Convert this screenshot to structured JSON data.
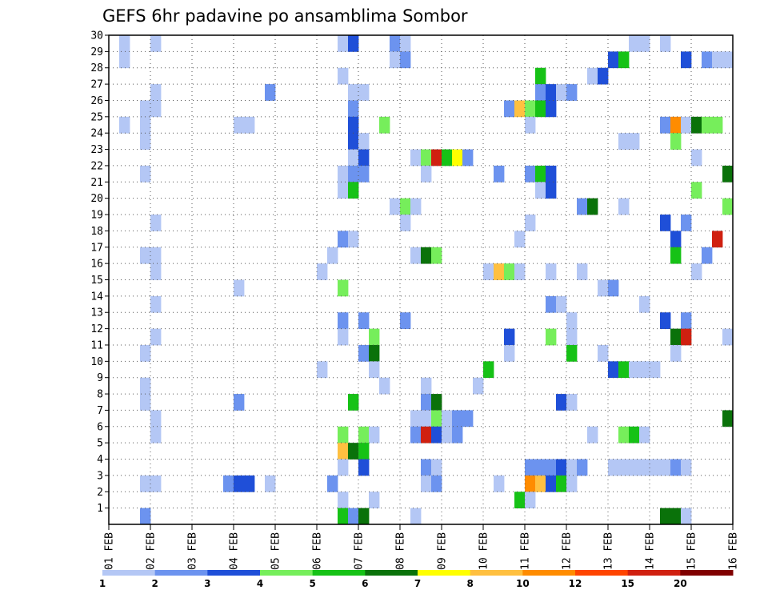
{
  "chart_data": {
    "type": "heatmap",
    "title": "GEFS 6hr padavine po ansamblima Sombor",
    "y_ticks": [
      "1",
      "2",
      "3",
      "4",
      "5",
      "6",
      "7",
      "8",
      "9",
      "10",
      "11",
      "12",
      "13",
      "14",
      "15",
      "16",
      "17",
      "18",
      "19",
      "20",
      "21",
      "22",
      "23",
      "24",
      "25",
      "26",
      "27",
      "28",
      "29",
      "30"
    ],
    "x_ticks": [
      "01 FEB",
      "02 FEB",
      "03 FEB",
      "04 FEB",
      "05 FEB",
      "06 FEB",
      "07 FEB",
      "08 FEB",
      "09 FEB",
      "10 FEB",
      "11 FEB",
      "12 FEB",
      "13 FEB",
      "14 FEB",
      "15 FEB",
      "16 FEB"
    ],
    "x_range_days": [
      0,
      15
    ],
    "y_range_members": [
      0,
      30
    ],
    "steps_per_day": 4,
    "legend": {
      "labels": [
        "1",
        "2",
        "3",
        "4",
        "5",
        "6",
        "7",
        "8",
        "10",
        "12",
        "15",
        "20"
      ],
      "colors": [
        "#b4c7f5",
        "#6c93ef",
        "#1f4fd8",
        "#76ee5b",
        "#16c216",
        "#0a720a",
        "#ffff00",
        "#ffc040",
        "#ff8c00",
        "#ff4500",
        "#d02010",
        "#800000"
      ]
    },
    "cells": [
      [
        1,
        30,
        1
      ],
      [
        4,
        30,
        1
      ],
      [
        22,
        30,
        1
      ],
      [
        23,
        30,
        3
      ],
      [
        27,
        30,
        2
      ],
      [
        28,
        30,
        1
      ],
      [
        50,
        30,
        1
      ],
      [
        51,
        30,
        1
      ],
      [
        53,
        30,
        1
      ],
      [
        1,
        29,
        1
      ],
      [
        27,
        29,
        1
      ],
      [
        28,
        29,
        2
      ],
      [
        48,
        29,
        3
      ],
      [
        49,
        29,
        5
      ],
      [
        55,
        29,
        3
      ],
      [
        57,
        29,
        2
      ],
      [
        58,
        29,
        1
      ],
      [
        59,
        29,
        1
      ],
      [
        22,
        28,
        1
      ],
      [
        41,
        28,
        5
      ],
      [
        46,
        28,
        1
      ],
      [
        47,
        28,
        3
      ],
      [
        4,
        27,
        1
      ],
      [
        15,
        27,
        2
      ],
      [
        23,
        27,
        1
      ],
      [
        24,
        27,
        1
      ],
      [
        41,
        27,
        2
      ],
      [
        42,
        27,
        3
      ],
      [
        43,
        27,
        1
      ],
      [
        44,
        27,
        2
      ],
      [
        3,
        26,
        1
      ],
      [
        4,
        26,
        1
      ],
      [
        23,
        26,
        2
      ],
      [
        38,
        26,
        2
      ],
      [
        39,
        26,
        8
      ],
      [
        40,
        26,
        4
      ],
      [
        41,
        26,
        5
      ],
      [
        42,
        26,
        3
      ],
      [
        1,
        25,
        1
      ],
      [
        3,
        25,
        1
      ],
      [
        12,
        25,
        1
      ],
      [
        13,
        25,
        1
      ],
      [
        23,
        25,
        3
      ],
      [
        26,
        25,
        4
      ],
      [
        40,
        25,
        1
      ],
      [
        53,
        25,
        2
      ],
      [
        54,
        25,
        9
      ],
      [
        55,
        25,
        1
      ],
      [
        56,
        25,
        6
      ],
      [
        57,
        25,
        4
      ],
      [
        58,
        25,
        4
      ],
      [
        3,
        24,
        1
      ],
      [
        23,
        24,
        3
      ],
      [
        24,
        24,
        1
      ],
      [
        49,
        24,
        1
      ],
      [
        50,
        24,
        1
      ],
      [
        54,
        24,
        4
      ],
      [
        23,
        23,
        1
      ],
      [
        24,
        23,
        3
      ],
      [
        29,
        23,
        1
      ],
      [
        30,
        23,
        4
      ],
      [
        31,
        23,
        11
      ],
      [
        32,
        23,
        5
      ],
      [
        33,
        23,
        7
      ],
      [
        34,
        23,
        2
      ],
      [
        56,
        23,
        1
      ],
      [
        3,
        22,
        1
      ],
      [
        22,
        22,
        1
      ],
      [
        23,
        22,
        2
      ],
      [
        24,
        22,
        2
      ],
      [
        30,
        22,
        1
      ],
      [
        37,
        22,
        2
      ],
      [
        40,
        22,
        2
      ],
      [
        41,
        22,
        5
      ],
      [
        42,
        22,
        3
      ],
      [
        59,
        22,
        6
      ],
      [
        22,
        21,
        1
      ],
      [
        23,
        21,
        5
      ],
      [
        41,
        21,
        1
      ],
      [
        42,
        21,
        3
      ],
      [
        56,
        21,
        4
      ],
      [
        27,
        20,
        1
      ],
      [
        28,
        20,
        4
      ],
      [
        29,
        20,
        1
      ],
      [
        45,
        20,
        2
      ],
      [
        46,
        20,
        6
      ],
      [
        49,
        20,
        1
      ],
      [
        59,
        20,
        4
      ],
      [
        4,
        19,
        1
      ],
      [
        28,
        19,
        1
      ],
      [
        40,
        19,
        1
      ],
      [
        53,
        19,
        3
      ],
      [
        55,
        19,
        2
      ],
      [
        22,
        18,
        2
      ],
      [
        23,
        18,
        1
      ],
      [
        39,
        18,
        1
      ],
      [
        54,
        18,
        3
      ],
      [
        58,
        18,
        11
      ],
      [
        3,
        17,
        1
      ],
      [
        4,
        17,
        1
      ],
      [
        21,
        17,
        1
      ],
      [
        29,
        17,
        1
      ],
      [
        30,
        17,
        6
      ],
      [
        31,
        17,
        4
      ],
      [
        54,
        17,
        5
      ],
      [
        57,
        17,
        2
      ],
      [
        4,
        16,
        1
      ],
      [
        20,
        16,
        1
      ],
      [
        36,
        16,
        1
      ],
      [
        37,
        16,
        8
      ],
      [
        38,
        16,
        4
      ],
      [
        39,
        16,
        1
      ],
      [
        42,
        16,
        1
      ],
      [
        45,
        16,
        1
      ],
      [
        56,
        16,
        1
      ],
      [
        12,
        15,
        1
      ],
      [
        22,
        15,
        4
      ],
      [
        47,
        15,
        1
      ],
      [
        48,
        15,
        2
      ],
      [
        4,
        14,
        1
      ],
      [
        42,
        14,
        2
      ],
      [
        43,
        14,
        1
      ],
      [
        51,
        14,
        1
      ],
      [
        22,
        13,
        2
      ],
      [
        24,
        13,
        2
      ],
      [
        28,
        13,
        2
      ],
      [
        44,
        13,
        1
      ],
      [
        53,
        13,
        3
      ],
      [
        55,
        13,
        2
      ],
      [
        4,
        12,
        1
      ],
      [
        22,
        12,
        1
      ],
      [
        25,
        12,
        4
      ],
      [
        38,
        12,
        3
      ],
      [
        42,
        12,
        4
      ],
      [
        44,
        12,
        1
      ],
      [
        54,
        12,
        6
      ],
      [
        55,
        12,
        11
      ],
      [
        59,
        12,
        1
      ],
      [
        3,
        11,
        1
      ],
      [
        24,
        11,
        2
      ],
      [
        25,
        11,
        6
      ],
      [
        38,
        11,
        1
      ],
      [
        44,
        11,
        5
      ],
      [
        47,
        11,
        1
      ],
      [
        54,
        11,
        1
      ],
      [
        20,
        10,
        1
      ],
      [
        25,
        10,
        1
      ],
      [
        36,
        10,
        5
      ],
      [
        48,
        10,
        3
      ],
      [
        49,
        10,
        5
      ],
      [
        50,
        10,
        1
      ],
      [
        51,
        10,
        1
      ],
      [
        52,
        10,
        1
      ],
      [
        3,
        9,
        1
      ],
      [
        26,
        9,
        1
      ],
      [
        30,
        9,
        1
      ],
      [
        35,
        9,
        1
      ],
      [
        3,
        8,
        1
      ],
      [
        12,
        8,
        2
      ],
      [
        23,
        8,
        5
      ],
      [
        30,
        8,
        2
      ],
      [
        31,
        8,
        6
      ],
      [
        43,
        8,
        3
      ],
      [
        44,
        8,
        1
      ],
      [
        4,
        7,
        1
      ],
      [
        29,
        7,
        1
      ],
      [
        30,
        7,
        1
      ],
      [
        31,
        7,
        4
      ],
      [
        32,
        7,
        1
      ],
      [
        33,
        7,
        2
      ],
      [
        34,
        7,
        2
      ],
      [
        59,
        7,
        6
      ],
      [
        4,
        6,
        1
      ],
      [
        22,
        6,
        4
      ],
      [
        24,
        6,
        4
      ],
      [
        25,
        6,
        1
      ],
      [
        29,
        6,
        2
      ],
      [
        30,
        6,
        11
      ],
      [
        31,
        6,
        3
      ],
      [
        32,
        6,
        1
      ],
      [
        33,
        6,
        2
      ],
      [
        46,
        6,
        1
      ],
      [
        49,
        6,
        4
      ],
      [
        50,
        6,
        5
      ],
      [
        51,
        6,
        1
      ],
      [
        22,
        5,
        8
      ],
      [
        23,
        5,
        6
      ],
      [
        24,
        5,
        5
      ],
      [
        22,
        4,
        1
      ],
      [
        24,
        4,
        3
      ],
      [
        30,
        4,
        2
      ],
      [
        31,
        4,
        1
      ],
      [
        40,
        4,
        2
      ],
      [
        41,
        4,
        2
      ],
      [
        42,
        4,
        2
      ],
      [
        43,
        4,
        3
      ],
      [
        44,
        4,
        1
      ],
      [
        45,
        4,
        2
      ],
      [
        48,
        4,
        1
      ],
      [
        49,
        4,
        1
      ],
      [
        50,
        4,
        1
      ],
      [
        51,
        4,
        1
      ],
      [
        52,
        4,
        1
      ],
      [
        53,
        4,
        1
      ],
      [
        54,
        4,
        2
      ],
      [
        55,
        4,
        1
      ],
      [
        3,
        3,
        1
      ],
      [
        4,
        3,
        1
      ],
      [
        11,
        3,
        2
      ],
      [
        12,
        3,
        3
      ],
      [
        13,
        3,
        3
      ],
      [
        15,
        3,
        1
      ],
      [
        21,
        3,
        2
      ],
      [
        30,
        3,
        1
      ],
      [
        31,
        3,
        2
      ],
      [
        37,
        3,
        1
      ],
      [
        40,
        3,
        9
      ],
      [
        41,
        3,
        8
      ],
      [
        42,
        3,
        3
      ],
      [
        43,
        3,
        5
      ],
      [
        44,
        3,
        1
      ],
      [
        22,
        2,
        1
      ],
      [
        25,
        2,
        1
      ],
      [
        39,
        2,
        5
      ],
      [
        40,
        2,
        1
      ],
      [
        3,
        1,
        2
      ],
      [
        22,
        1,
        5
      ],
      [
        23,
        1,
        2
      ],
      [
        24,
        1,
        6
      ],
      [
        29,
        1,
        1
      ],
      [
        53,
        1,
        6
      ],
      [
        54,
        1,
        6
      ],
      [
        55,
        1,
        1
      ]
    ]
  }
}
